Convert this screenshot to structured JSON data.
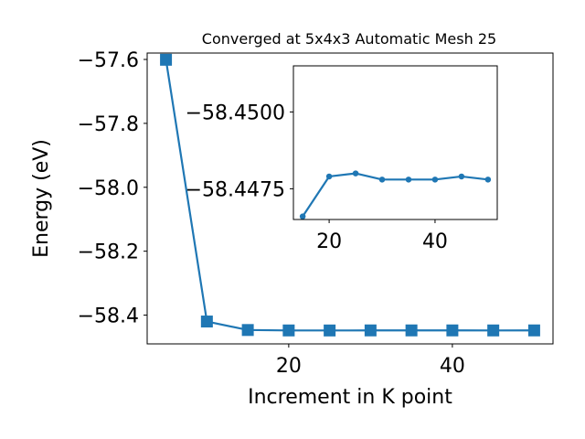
{
  "chart_data": [
    {
      "type": "line",
      "title": "Converged at 5x4x3 Automatic Mesh 25",
      "xlabel": "Increment in K point",
      "ylabel": "Energy (eV)",
      "xlim": [
        2.7,
        52.3
      ],
      "ylim": [
        -58.49,
        -57.58
      ],
      "xticks": [
        20,
        40
      ],
      "xtick_labels": [
        "20",
        "40"
      ],
      "yticks": [
        -57.6,
        -57.8,
        -58.0,
        -58.2,
        -58.4
      ],
      "ytick_labels": [
        "−57.6",
        "−57.8",
        "−58.0",
        "−58.2",
        "−58.4"
      ],
      "grid": false,
      "marker": "square",
      "series": [
        {
          "color": "#1f77b4",
          "x": [
            5,
            10,
            15,
            20,
            25,
            30,
            35,
            40,
            45,
            50
          ],
          "y": [
            -57.601,
            -58.42,
            -58.4466,
            -58.4479,
            -58.448,
            -58.4478,
            -58.4478,
            -58.4478,
            -58.4479,
            -58.4478
          ]
        }
      ]
    },
    {
      "type": "line",
      "title": "",
      "xlabel": "",
      "ylabel": "",
      "xlim": [
        13.25,
        51.75
      ],
      "ylim": [
        -58.4465,
        -58.4515
      ],
      "xticks": [
        20,
        40
      ],
      "xtick_labels": [
        "20",
        "40"
      ],
      "yticks": [
        -58.45,
        -58.4475
      ],
      "ytick_labels": [
        "−58.4500",
        "−58.4475"
      ],
      "grid": false,
      "marker": "circle",
      "series": [
        {
          "color": "#1f77b4",
          "x": [
            15,
            20,
            25,
            30,
            35,
            40,
            45,
            50
          ],
          "y": [
            -58.4466,
            -58.4479,
            -58.448,
            -58.4478,
            -58.4478,
            -58.4478,
            -58.4479,
            -58.4478
          ]
        }
      ]
    }
  ]
}
